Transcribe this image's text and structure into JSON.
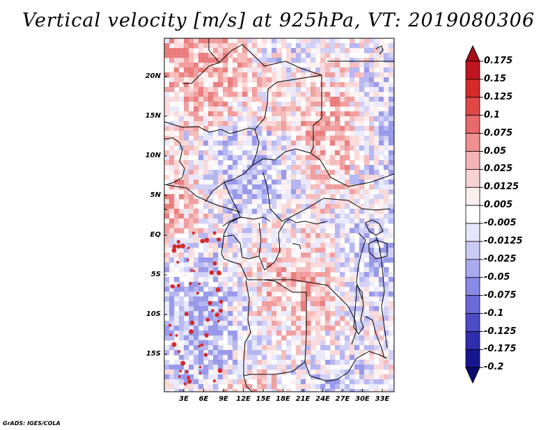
{
  "title": "Vertical velocity [m/s] at 925hPa, VT: 2019080306",
  "credit": "GrADS: IGES/COLA",
  "map": {
    "lat_labels": [
      "20N",
      "15N",
      "10N",
      "5N",
      "EQ",
      "5S",
      "10S",
      "15S"
    ],
    "lon_labels": [
      "3E",
      "6E",
      "9E",
      "12E",
      "15E",
      "18E",
      "21E",
      "24E",
      "27E",
      "30E",
      "33E"
    ]
  },
  "colorbar": {
    "levels": [
      "0.175",
      "0.15",
      "0.125",
      "0.1",
      "0.075",
      "0.05",
      "0.025",
      "0.0125",
      "0.005",
      "-0.005",
      "-0.0125",
      "-0.025",
      "-0.05",
      "-0.075",
      "-0.1",
      "-0.125",
      "-0.175",
      "-0.2"
    ],
    "colors": [
      "#a50f15",
      "#c0161f",
      "#d42a2a",
      "#e04848",
      "#e86a6a",
      "#ef8f8f",
      "#f5b2b2",
      "#f9d3d3",
      "#fdeeee",
      "#ffffff",
      "#e6e6fb",
      "#cacaf5",
      "#aaaaef",
      "#8989e6",
      "#6a6ad9",
      "#4c4cc6",
      "#2e2eae",
      "#161690",
      "#0a0a6e"
    ]
  }
}
